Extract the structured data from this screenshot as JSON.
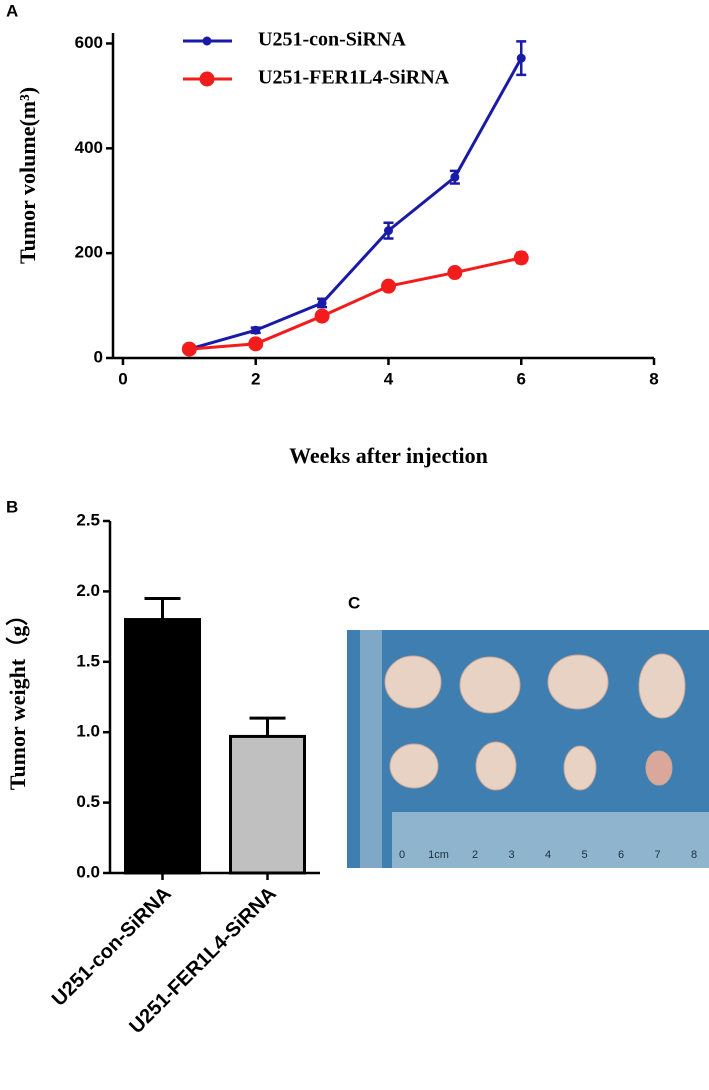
{
  "chart_data": [
    {
      "type": "line",
      "panel": "A",
      "xlabel": "Weeks after injection",
      "ylabel": "Tumor volume(m³)",
      "x": [
        1,
        2,
        3,
        4,
        5,
        6
      ],
      "series": [
        {
          "name": "U251-con-SiRNA",
          "color": "#1a1aa8",
          "values": [
            17,
            53,
            105,
            243,
            345,
            572
          ],
          "errors": [
            4,
            5,
            8,
            15,
            12,
            32
          ]
        },
        {
          "name": "U251-FER1L4-SiRNA",
          "color": "#f21c1c",
          "values": [
            17,
            27,
            80,
            137,
            163,
            191
          ],
          "errors": [
            4,
            4,
            6,
            6,
            5,
            10
          ]
        }
      ],
      "xlim": [
        -0.15,
        8
      ],
      "xticks": [
        0,
        2,
        4,
        6,
        8
      ],
      "ylim": [
        0,
        620
      ],
      "yticks": [
        0,
        200,
        400,
        600
      ]
    },
    {
      "type": "bar",
      "panel": "B",
      "ylabel": "Tumor weight（g）",
      "categories": [
        "U251-con-SiRNA",
        "U251-FER1L4-SiRNA"
      ],
      "values": [
        1.8,
        0.97
      ],
      "errors": [
        0.15,
        0.13
      ],
      "colors": [
        "#000000",
        "#c0c0c0"
      ],
      "ylim": [
        0,
        2.5
      ],
      "yticks": [
        {
          "value": 0,
          "label": "0.0"
        },
        0.5,
        {
          "value": 1,
          "label": "1.0"
        },
        1.5,
        {
          "value": 2,
          "label": "2.0"
        },
        2.5
      ]
    }
  ],
  "photo": {
    "panel": "C",
    "ruler_labels": [
      "0",
      "1cm",
      "2",
      "3",
      "4",
      "5",
      "6",
      "7",
      "8"
    ]
  }
}
